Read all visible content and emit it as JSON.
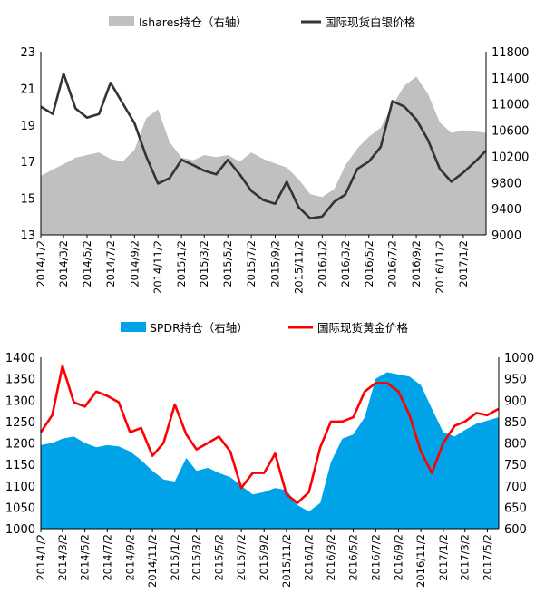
{
  "chart_data": [
    {
      "type": "line",
      "legend": [
        {
          "label": "Ishares持仓（右轴）",
          "kind": "area",
          "color": "#c0c0c0"
        },
        {
          "label": "国际现货白银价格",
          "kind": "line",
          "color": "#333333"
        }
      ],
      "legend_position": "top",
      "x_ticks": [
        "2014/1/2",
        "2014/3/2",
        "2014/5/2",
        "2014/7/2",
        "2014/9/2",
        "2014/11/2",
        "2015/1/2",
        "2015/3/2",
        "2015/5/2",
        "2015/7/2",
        "2015/9/2",
        "2015/11/2",
        "2016/1/2",
        "2016/3/2",
        "2016/5/2",
        "2016/7/2",
        "2016/9/2",
        "2016/11/2",
        "2017/1/2"
      ],
      "y_left": {
        "min": 13,
        "max": 23,
        "ticks": [
          "23",
          "21",
          "19",
          "17",
          "15",
          "13"
        ]
      },
      "y_right": {
        "min": 9000,
        "max": 11800,
        "ticks": [
          "11800",
          "11400",
          "11000",
          "10600",
          "10200",
          "9800",
          "9400",
          "9000"
        ]
      },
      "series": [
        {
          "name": "Ishares持仓（右轴）",
          "axis": "right",
          "style": "area",
          "color": "#c0c0c0",
          "x": [
            "2014/1/2",
            "2014/2/2",
            "2014/3/2",
            "2014/4/2",
            "2014/5/2",
            "2014/6/2",
            "2014/7/2",
            "2014/8/2",
            "2014/9/2",
            "2014/10/2",
            "2014/11/2",
            "2014/12/2",
            "2015/1/2",
            "2015/2/2",
            "2015/3/2",
            "2015/4/2",
            "2015/5/2",
            "2015/6/2",
            "2015/7/2",
            "2015/8/2",
            "2015/9/2",
            "2015/10/2",
            "2015/11/2",
            "2015/12/2",
            "2016/1/2",
            "2016/2/2",
            "2016/3/2",
            "2016/4/2",
            "2016/5/2",
            "2016/6/2",
            "2016/7/2",
            "2016/8/2",
            "2016/9/2",
            "2016/10/2",
            "2016/11/2",
            "2016/12/2",
            "2017/1/2",
            "2017/2/2",
            "2017/3/2"
          ],
          "values": [
            9900,
            10000,
            10080,
            10180,
            10220,
            10260,
            10160,
            10120,
            10300,
            10780,
            10920,
            10420,
            10180,
            10140,
            10220,
            10190,
            10220,
            10120,
            10260,
            10160,
            10090,
            10030,
            9850,
            9620,
            9580,
            9700,
            10060,
            10320,
            10500,
            10640,
            10980,
            11280,
            11420,
            11160,
            10720,
            10560,
            10600,
            10580,
            10560
          ]
        },
        {
          "name": "国际现货白银价格",
          "axis": "left",
          "style": "line",
          "color": "#333333",
          "x": [
            "2014/1/2",
            "2014/2/2",
            "2014/3/2",
            "2014/4/2",
            "2014/5/2",
            "2014/6/2",
            "2014/7/2",
            "2014/8/2",
            "2014/9/2",
            "2014/10/2",
            "2014/11/2",
            "2014/12/2",
            "2015/1/2",
            "2015/2/2",
            "2015/3/2",
            "2015/4/2",
            "2015/5/2",
            "2015/6/2",
            "2015/7/2",
            "2015/8/2",
            "2015/9/2",
            "2015/10/2",
            "2015/11/2",
            "2015/12/2",
            "2016/1/2",
            "2016/2/2",
            "2016/3/2",
            "2016/4/2",
            "2016/5/2",
            "2016/6/2",
            "2016/7/2",
            "2016/8/2",
            "2016/9/2",
            "2016/10/2",
            "2016/11/2",
            "2016/12/2",
            "2017/1/2",
            "2017/2/2",
            "2017/3/2"
          ],
          "values": [
            20.0,
            19.6,
            21.8,
            19.9,
            19.4,
            19.6,
            21.3,
            20.2,
            19.1,
            17.3,
            15.8,
            16.1,
            17.1,
            16.8,
            16.5,
            16.3,
            17.1,
            16.3,
            15.4,
            14.9,
            14.7,
            15.9,
            14.5,
            13.9,
            14.0,
            14.8,
            15.2,
            16.6,
            17.0,
            17.8,
            20.3,
            20.0,
            19.3,
            18.2,
            16.6,
            15.9,
            16.4,
            17.0,
            17.6
          ]
        }
      ]
    },
    {
      "type": "line",
      "legend": [
        {
          "label": "SPDR持仓（右轴）",
          "kind": "area",
          "color": "#00a2e8"
        },
        {
          "label": "国际现货黄金价格",
          "kind": "line",
          "color": "#ff0000"
        }
      ],
      "legend_position": "top",
      "x_ticks": [
        "2014/1/2",
        "2014/3/2",
        "2014/5/2",
        "2014/7/2",
        "2014/9/2",
        "2014/11/2",
        "2015/1/2",
        "2015/3/2",
        "2015/5/2",
        "2015/7/2",
        "2015/9/2",
        "2015/11/2",
        "2016/1/2",
        "2016/3/2",
        "2016/5/2",
        "2016/7/2",
        "2016/9/2",
        "2016/11/2",
        "2017/1/2",
        "2017/3/2",
        "2017/5/2"
      ],
      "y_left": {
        "min": 1000,
        "max": 1400,
        "ticks": [
          "1400",
          "1350",
          "1300",
          "1250",
          "1200",
          "1150",
          "1100",
          "1050",
          "1000"
        ]
      },
      "y_right": {
        "min": 600,
        "max": 1000,
        "ticks": [
          "1000",
          "950",
          "900",
          "850",
          "800",
          "750",
          "700",
          "650",
          "600"
        ]
      },
      "series": [
        {
          "name": "SPDR持仓（右轴）",
          "axis": "right",
          "style": "area",
          "color": "#00a2e8",
          "x": [
            "2014/1/2",
            "2014/2/2",
            "2014/3/2",
            "2014/4/2",
            "2014/5/2",
            "2014/6/2",
            "2014/7/2",
            "2014/8/2",
            "2014/9/2",
            "2014/10/2",
            "2014/11/2",
            "2014/12/2",
            "2015/1/2",
            "2015/2/2",
            "2015/3/2",
            "2015/4/2",
            "2015/5/2",
            "2015/6/2",
            "2015/7/2",
            "2015/8/2",
            "2015/9/2",
            "2015/10/2",
            "2015/11/2",
            "2015/12/2",
            "2016/1/2",
            "2016/2/2",
            "2016/3/2",
            "2016/4/2",
            "2016/5/2",
            "2016/6/2",
            "2016/7/2",
            "2016/8/2",
            "2016/9/2",
            "2016/10/2",
            "2016/11/2",
            "2016/12/2",
            "2017/1/2",
            "2017/2/2",
            "2017/3/2",
            "2017/4/2",
            "2017/5/2",
            "2017/6/2"
          ],
          "values": [
            795,
            800,
            810,
            815,
            800,
            790,
            795,
            792,
            780,
            760,
            735,
            715,
            710,
            765,
            735,
            742,
            730,
            720,
            700,
            680,
            685,
            695,
            690,
            655,
            640,
            660,
            755,
            810,
            820,
            860,
            950,
            965,
            960,
            955,
            935,
            880,
            825,
            815,
            830,
            845,
            852,
            860
          ]
        },
        {
          "name": "国际现货黄金价格",
          "axis": "left",
          "style": "line",
          "color": "#ff0000",
          "x": [
            "2014/1/2",
            "2014/2/2",
            "2014/3/2",
            "2014/4/2",
            "2014/5/2",
            "2014/6/2",
            "2014/7/2",
            "2014/8/2",
            "2014/9/2",
            "2014/10/2",
            "2014/11/2",
            "2014/12/2",
            "2015/1/2",
            "2015/2/2",
            "2015/3/2",
            "2015/4/2",
            "2015/5/2",
            "2015/6/2",
            "2015/7/2",
            "2015/8/2",
            "2015/9/2",
            "2015/10/2",
            "2015/11/2",
            "2015/12/2",
            "2016/1/2",
            "2016/2/2",
            "2016/3/2",
            "2016/4/2",
            "2016/5/2",
            "2016/6/2",
            "2016/7/2",
            "2016/8/2",
            "2016/9/2",
            "2016/10/2",
            "2016/11/2",
            "2016/12/2",
            "2017/1/2",
            "2017/2/2",
            "2017/3/2",
            "2017/4/2",
            "2017/5/2",
            "2017/6/2"
          ],
          "values": [
            1225,
            1265,
            1380,
            1295,
            1285,
            1320,
            1310,
            1295,
            1225,
            1235,
            1170,
            1200,
            1290,
            1220,
            1185,
            1200,
            1215,
            1180,
            1095,
            1130,
            1130,
            1175,
            1080,
            1060,
            1085,
            1190,
            1250,
            1250,
            1260,
            1320,
            1340,
            1340,
            1320,
            1265,
            1180,
            1130,
            1200,
            1240,
            1250,
            1270,
            1265,
            1280
          ]
        }
      ]
    }
  ]
}
